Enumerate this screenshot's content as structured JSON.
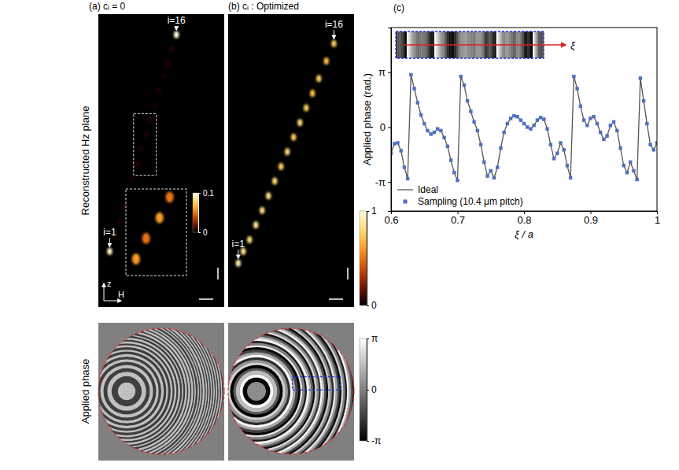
{
  "chart_data": [
    {
      "type": "spots",
      "title": "(a) cᵢ = 0",
      "row_label": "Reconstructed Hz plane",
      "xlabel": "H",
      "ylabel": "z",
      "xlim": [
        0,
        1
      ],
      "ylim": [
        0,
        1
      ],
      "tick_labels": false,
      "x": [
        0.09,
        0.13,
        0.17,
        0.2,
        0.24,
        0.27,
        0.31,
        0.34,
        0.38,
        0.41,
        0.45,
        0.48,
        0.52,
        0.55,
        0.58,
        0.62
      ],
      "y": [
        0.19,
        0.24,
        0.29,
        0.34,
        0.39,
        0.44,
        0.49,
        0.54,
        0.59,
        0.64,
        0.69,
        0.74,
        0.79,
        0.83,
        0.88,
        0.93
      ],
      "values": [
        0.95,
        0.04,
        0.03,
        0.05,
        0.04,
        0.05,
        0.06,
        0.05,
        0.06,
        0.05,
        0.04,
        0.05,
        0.04,
        0.05,
        0.06,
        1.0
      ],
      "point_labels": [
        "i=1",
        null,
        null,
        null,
        null,
        null,
        null,
        null,
        null,
        null,
        null,
        null,
        null,
        null,
        null,
        "i=16"
      ],
      "inset": {
        "xlim": [
          0.28,
          0.46
        ],
        "ylim": [
          0.45,
          0.66
        ],
        "colorbar": {
          "range": [
            0,
            0.1
          ],
          "ticks": [
            0,
            0.1
          ]
        }
      }
    },
    {
      "type": "spots",
      "title": "(b) cᵢ : Optimized",
      "xlim": [
        0,
        1
      ],
      "ylim": [
        0,
        1
      ],
      "tick_labels": false,
      "x": [
        0.08,
        0.12,
        0.17,
        0.22,
        0.27,
        0.32,
        0.37,
        0.42,
        0.47,
        0.52,
        0.57,
        0.62,
        0.67,
        0.72,
        0.78,
        0.84
      ],
      "y": [
        0.15,
        0.19,
        0.23,
        0.28,
        0.33,
        0.38,
        0.43,
        0.48,
        0.53,
        0.58,
        0.63,
        0.68,
        0.73,
        0.78,
        0.84,
        0.9
      ],
      "values": [
        0.9,
        0.85,
        0.8,
        0.85,
        0.8,
        0.85,
        0.8,
        0.75,
        0.8,
        0.75,
        0.8,
        0.75,
        0.7,
        0.75,
        0.7,
        0.75
      ],
      "point_labels": [
        "i=1",
        null,
        null,
        null,
        null,
        null,
        null,
        null,
        null,
        null,
        null,
        null,
        null,
        null,
        null,
        "i=16"
      ],
      "colorbar": {
        "range": [
          0,
          1
        ],
        "ticks": [
          0,
          1
        ]
      }
    },
    {
      "type": "rings",
      "row_label": "Applied phase",
      "radii": [
        0.14,
        0.24,
        0.31,
        0.37,
        0.42,
        0.47,
        0.51,
        0.55,
        0.59,
        0.63,
        0.66,
        0.7,
        0.73,
        0.76,
        0.79,
        0.82,
        0.85,
        0.88,
        0.9,
        0.93,
        0.96,
        0.98,
        1.01,
        1.03,
        1.06,
        1.08,
        1.1,
        1.13,
        1.15,
        1.17,
        1.19,
        1.21,
        1.24,
        1.26,
        1.28,
        1.3,
        1.32,
        1.34,
        1.36,
        1.38,
        1.4,
        1.42,
        1.44,
        1.46,
        1.48,
        1.5,
        1.52,
        1.54,
        1.56,
        1.58
      ],
      "values": [
        1.6,
        -1.6,
        1.6,
        -1.6,
        1.6,
        -1.6,
        1.6,
        -1.6,
        1.6,
        -1.6,
        1.6,
        -1.6,
        1.6,
        -1.6,
        1.6,
        -1.6,
        1.6,
        -1.6,
        1.6,
        -1.6,
        1.6,
        -1.6,
        1.6,
        -1.6,
        1.6,
        -1.6,
        1.6,
        -1.6,
        1.6,
        -1.6,
        1.6,
        -1.6,
        1.6,
        -1.6,
        1.6,
        -1.6,
        1.6,
        -1.6,
        1.6,
        -1.6,
        1.6,
        -1.6,
        1.6,
        -1.6,
        1.6,
        -1.6,
        1.6,
        -1.6,
        1.6,
        -1.6
      ]
    },
    {
      "type": "rings",
      "radii": [
        0.15,
        0.22,
        0.27,
        0.33,
        0.37,
        0.42,
        0.46,
        0.5,
        0.54,
        0.58,
        0.62,
        0.66,
        0.7,
        0.73,
        0.77,
        0.8,
        0.84,
        0.87,
        0.9,
        0.93,
        0.96,
        0.99,
        1.02,
        1.05,
        1.08,
        1.11,
        1.14,
        1.17,
        1.2,
        1.23,
        1.26,
        1.29,
        1.32,
        1.35,
        1.38,
        1.41,
        1.44,
        1.47,
        1.5,
        1.53,
        1.56,
        1.59
      ],
      "values": [
        0.3,
        -3.0,
        3.0,
        1.5,
        -1.0,
        -3.1,
        2.0,
        0.5,
        -2.0,
        3.0,
        1.0,
        -1.5,
        -3.0,
        2.5,
        0.0,
        -2.5,
        2.8,
        1.2,
        -0.8,
        -2.8,
        2.2,
        0.4,
        -1.8,
        3.0,
        1.4,
        -1.2,
        -3.0,
        1.8,
        0.2,
        -2.2,
        2.6,
        0.8,
        -1.4,
        -3.0,
        2.0,
        0.0,
        -2.4,
        2.9,
        1.0,
        -1.0,
        -2.9,
        2.2
      ],
      "colorbar": {
        "range": [
          -3.14159,
          3.14159
        ],
        "ticks": [
          {
            "value": -3.14159,
            "label": "-π"
          },
          0,
          {
            "value": 3.14159,
            "label": "π"
          }
        ]
      }
    },
    {
      "type": "line",
      "title": "(c)",
      "xlabel": "ξ / a",
      "ylabel": "Applied phase (rad.)",
      "inset_label": "ξ",
      "xlim": [
        0.6,
        1
      ],
      "ylim": [
        -4.8,
        5.7
      ],
      "xticks": [
        0.6,
        0.7,
        0.8,
        0.9,
        1
      ],
      "yticks": [
        {
          "value": -3.14159,
          "label": "-π"
        },
        0,
        {
          "value": 3.14159,
          "label": "π"
        }
      ],
      "legend": "lower left",
      "x": [
        0.6,
        0.605,
        0.61,
        0.615,
        0.62,
        0.625,
        0.63,
        0.635,
        0.64,
        0.645,
        0.65,
        0.655,
        0.66,
        0.665,
        0.67,
        0.675,
        0.68,
        0.685,
        0.69,
        0.695,
        0.7,
        0.705,
        0.71,
        0.715,
        0.72,
        0.725,
        0.73,
        0.735,
        0.74,
        0.745,
        0.75,
        0.755,
        0.76,
        0.765,
        0.77,
        0.775,
        0.78,
        0.785,
        0.79,
        0.795,
        0.8,
        0.805,
        0.81,
        0.815,
        0.82,
        0.825,
        0.83,
        0.835,
        0.84,
        0.845,
        0.85,
        0.855,
        0.86,
        0.865,
        0.87,
        0.875,
        0.88,
        0.885,
        0.89,
        0.895,
        0.9,
        0.905,
        0.91,
        0.915,
        0.92,
        0.925,
        0.93,
        0.935,
        0.94,
        0.945,
        0.95,
        0.955,
        0.96,
        0.965,
        0.97,
        0.975,
        0.98,
        0.985,
        0.99,
        0.995,
        1.0
      ],
      "series": [
        {
          "name": "Ideal",
          "color": "#555555",
          "line_style": "solid",
          "values": [
            -1.5,
            -0.95,
            -0.9,
            -1.35,
            -2.3,
            -2.95,
            3.0,
            2.2,
            1.4,
            0.7,
            0.2,
            -0.2,
            -0.4,
            -0.3,
            -0.1,
            -0.2,
            -0.6,
            -1.1,
            -1.9,
            -2.6,
            -3.05,
            2.9,
            2.4,
            1.5,
            0.9,
            0.3,
            -0.2,
            -1.0,
            -2.0,
            -2.8,
            -2.5,
            -2.9,
            -2.3,
            -1.2,
            -0.3,
            0.2,
            0.5,
            0.65,
            0.6,
            0.4,
            0.2,
            0.0,
            -0.1,
            0.1,
            0.4,
            0.55,
            0.45,
            -0.1,
            -1.0,
            -1.8,
            -1.5,
            -0.9,
            -1.3,
            -2.2,
            -2.9,
            2.9,
            2.2,
            1.2,
            0.4,
            0.1,
            0.5,
            0.6,
            0.2,
            -0.3,
            -0.7,
            -0.5,
            0.1,
            0.3,
            -0.2,
            -1.2,
            -2.2,
            -2.6,
            -2.0,
            -2.5,
            -3.0,
            2.8,
            1.5,
            0.2,
            -1.0,
            -1.3,
            -0.9
          ]
        },
        {
          "name": "Sampling (10.4 μm pitch)",
          "color": "#4f6fc0",
          "type": "scatter",
          "marker": "square",
          "values": [
            -1.5,
            -0.95,
            -0.9,
            -1.35,
            -2.3,
            -2.95,
            3.0,
            2.2,
            1.4,
            0.7,
            0.2,
            -0.2,
            -0.4,
            -0.3,
            -0.1,
            -0.2,
            -0.6,
            -1.1,
            -1.9,
            -2.6,
            -3.05,
            2.9,
            2.4,
            1.5,
            0.9,
            0.3,
            -0.2,
            -1.0,
            -2.0,
            -2.8,
            -2.5,
            -2.9,
            -2.3,
            -1.2,
            -0.3,
            0.2,
            0.5,
            0.65,
            0.6,
            0.4,
            0.2,
            0.0,
            -0.1,
            0.1,
            0.4,
            0.55,
            0.45,
            -0.1,
            -1.0,
            -1.8,
            -1.5,
            -0.9,
            -1.3,
            -2.2,
            -2.9,
            2.9,
            2.2,
            1.2,
            0.4,
            0.1,
            0.5,
            0.6,
            0.2,
            -0.3,
            -0.7,
            -0.5,
            0.1,
            0.3,
            -0.2,
            -1.2,
            -2.2,
            -2.6,
            -2.0,
            -2.5,
            -3.0,
            2.8,
            1.5,
            0.2,
            -1.0,
            -1.3,
            -0.9
          ]
        }
      ]
    }
  ]
}
